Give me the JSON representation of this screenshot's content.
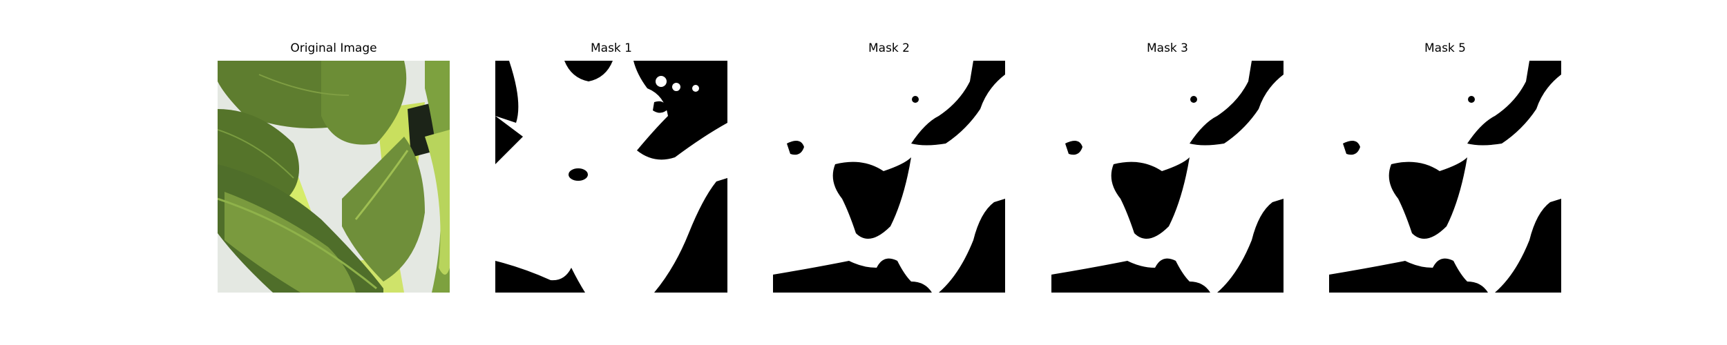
{
  "panels": [
    {
      "title": "Original Image",
      "kind": "photo",
      "subject": "leaf-photo"
    },
    {
      "title": "Mask 1",
      "kind": "mask",
      "subject": "segmentation-mask"
    },
    {
      "title": "Mask 2",
      "kind": "mask",
      "subject": "segmentation-mask"
    },
    {
      "title": "Mask 3",
      "kind": "mask",
      "subject": "segmentation-mask"
    },
    {
      "title": "Mask 5",
      "kind": "mask",
      "subject": "segmentation-mask"
    }
  ],
  "colors": {
    "background": "#ffffff",
    "mask_fg": "#ffffff",
    "mask_bg": "#000000",
    "leaf_dark": "#4f6e2a",
    "leaf_mid": "#6f8f3a",
    "leaf_light": "#a8c65a",
    "leaf_bright": "#d6ec6a",
    "photo_bg": "#e4e8e2"
  }
}
